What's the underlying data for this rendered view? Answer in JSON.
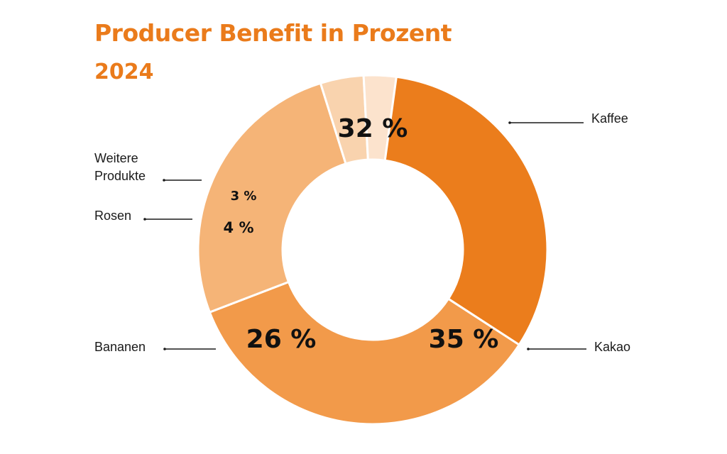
{
  "title": "Producer Benefit in Prozent",
  "subtitle": "2024",
  "chart_data": {
    "type": "pie",
    "variant": "donut",
    "title": "Producer Benefit in Prozent",
    "subtitle": "2024",
    "categories": [
      "Kaffee",
      "Kakao",
      "Bananen",
      "Rosen",
      "Weitere Produkte"
    ],
    "values": [
      32,
      35,
      26,
      4,
      3
    ],
    "value_labels": [
      "32 %",
      "35 %",
      "26 %",
      "4 %",
      "3 %"
    ],
    "colors": [
      "#eb7d1c",
      "#f29a4a",
      "#f5b477",
      "#f9d3ae",
      "#fce3cd"
    ],
    "legend": "none",
    "category_labels_placement": "outside with leader lines"
  }
}
